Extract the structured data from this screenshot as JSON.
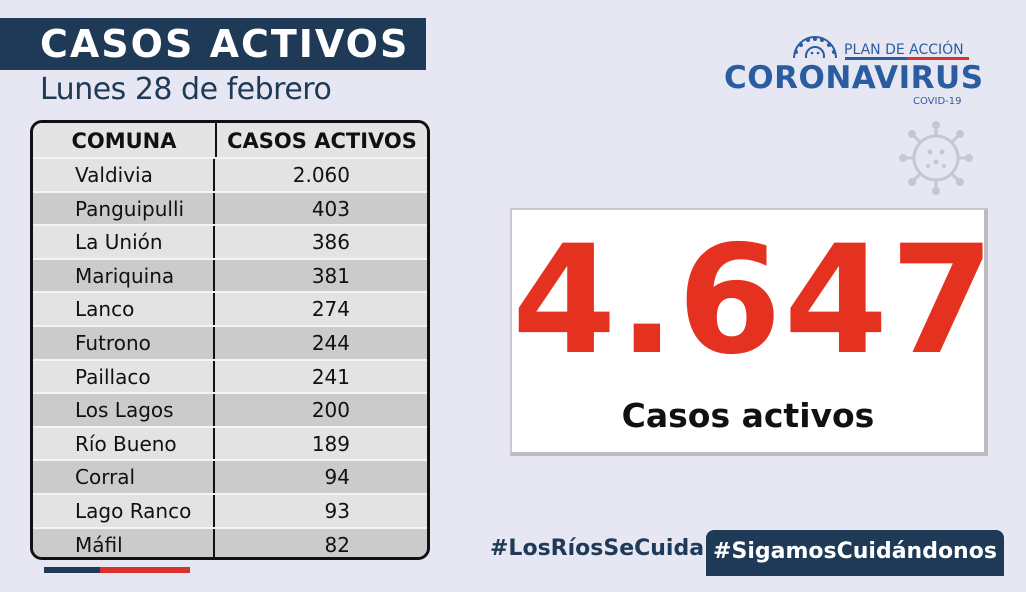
{
  "header": {
    "title": "CASOS ACTIVOS",
    "date": "Lunes 28 de febrero"
  },
  "table": {
    "columns": [
      "COMUNA",
      "CASOS ACTIVOS"
    ],
    "rows": [
      {
        "comuna": "Valdivia",
        "casos": "2.060"
      },
      {
        "comuna": "Panguipulli",
        "casos": "403"
      },
      {
        "comuna": "La Unión",
        "casos": "386"
      },
      {
        "comuna": "Mariquina",
        "casos": "381"
      },
      {
        "comuna": "Lanco",
        "casos": "274"
      },
      {
        "comuna": "Futrono",
        "casos": "244"
      },
      {
        "comuna": "Paillaco",
        "casos": "241"
      },
      {
        "comuna": "Los Lagos",
        "casos": "200"
      },
      {
        "comuna": "Río Bueno",
        "casos": "189"
      },
      {
        "comuna": "Corral",
        "casos": "94"
      },
      {
        "comuna": "Lago Ranco",
        "casos": "93"
      },
      {
        "comuna": "Máfil",
        "casos": "82"
      }
    ]
  },
  "logo": {
    "plan": "PLAN DE ACCIÓN",
    "main": "CORONAVIRUS",
    "sub": "COVID-19",
    "icon": "coronavirus-icon"
  },
  "total": {
    "number": "4.647",
    "label": "Casos activos"
  },
  "hashtags": {
    "first": "#LosRíosSeCuida",
    "second": "#SigamosCuidándonos"
  },
  "colors": {
    "navy": "#1f3a56",
    "red": "#e5311f",
    "blue": "#2a5d9f",
    "background": "#e6e7f2"
  }
}
